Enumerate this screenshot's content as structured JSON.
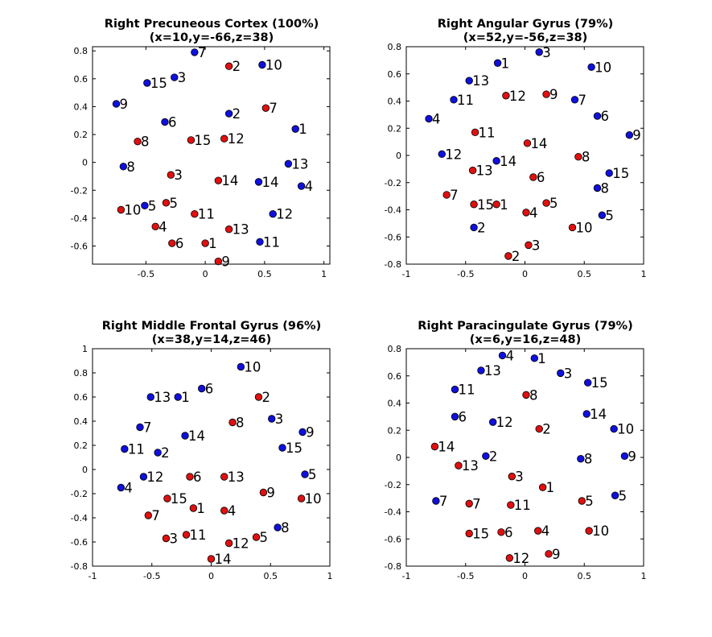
{
  "colors": {
    "red": "#e01010",
    "blue": "#1010dd",
    "edge": "#000000"
  },
  "chart_data": [
    {
      "type": "scatter",
      "title": "Right Precuneous Cortex (100%)",
      "subtitle": "(x=10,y=-66,z=38)",
      "xlim": [
        -0.95,
        1.05
      ],
      "ylim": [
        -0.73,
        0.83
      ],
      "xticks": [
        -0.5,
        0,
        0.5,
        1
      ],
      "xtick_labels": [
        "-0.5",
        "0",
        "0.5",
        "1"
      ],
      "yticks": [
        -0.6,
        -0.4,
        -0.2,
        0,
        0.2,
        0.4,
        0.6,
        0.8
      ],
      "ytick_labels": [
        "-0.6",
        "-0.4",
        "-0.2",
        "0",
        "0.2",
        "0.4",
        "0.6",
        "0.8"
      ],
      "series": [
        {
          "color": "blue",
          "points": [
            {
              "x": -0.09,
              "y": 0.79,
              "label": "7"
            },
            {
              "x": 0.48,
              "y": 0.7,
              "label": "10"
            },
            {
              "x": -0.26,
              "y": 0.61,
              "label": "3"
            },
            {
              "x": -0.49,
              "y": 0.57,
              "label": "15"
            },
            {
              "x": -0.75,
              "y": 0.42,
              "label": "9"
            },
            {
              "x": 0.2,
              "y": 0.35,
              "label": "2"
            },
            {
              "x": -0.34,
              "y": 0.29,
              "label": "6"
            },
            {
              "x": 0.76,
              "y": 0.24,
              "label": "1"
            },
            {
              "x": -0.69,
              "y": -0.03,
              "label": "8"
            },
            {
              "x": 0.7,
              "y": -0.01,
              "label": "13"
            },
            {
              "x": 0.45,
              "y": -0.14,
              "label": "14"
            },
            {
              "x": 0.81,
              "y": -0.17,
              "label": "4"
            },
            {
              "x": -0.51,
              "y": -0.31,
              "label": "5"
            },
            {
              "x": 0.57,
              "y": -0.37,
              "label": "12"
            },
            {
              "x": 0.46,
              "y": -0.57,
              "label": "11"
            }
          ]
        },
        {
          "color": "red",
          "points": [
            {
              "x": 0.2,
              "y": 0.69,
              "label": "2"
            },
            {
              "x": 0.51,
              "y": 0.39,
              "label": "7"
            },
            {
              "x": -0.57,
              "y": 0.15,
              "label": "8"
            },
            {
              "x": -0.12,
              "y": 0.16,
              "label": "15"
            },
            {
              "x": 0.16,
              "y": 0.17,
              "label": "12"
            },
            {
              "x": -0.29,
              "y": -0.09,
              "label": "3"
            },
            {
              "x": 0.11,
              "y": -0.13,
              "label": "14"
            },
            {
              "x": -0.33,
              "y": -0.29,
              "label": "5"
            },
            {
              "x": -0.71,
              "y": -0.34,
              "label": "10"
            },
            {
              "x": -0.09,
              "y": -0.37,
              "label": "11"
            },
            {
              "x": -0.42,
              "y": -0.46,
              "label": "4"
            },
            {
              "x": 0.2,
              "y": -0.48,
              "label": "13"
            },
            {
              "x": -0.28,
              "y": -0.58,
              "label": "6"
            },
            {
              "x": 0.0,
              "y": -0.58,
              "label": "1"
            },
            {
              "x": 0.11,
              "y": -0.71,
              "label": "9"
            }
          ]
        }
      ]
    },
    {
      "type": "scatter",
      "title": "Right Angular Gyrus (79%)",
      "subtitle": "(x=52,y=-56,z=38)",
      "xlim": [
        -1,
        1
      ],
      "ylim": [
        -0.8,
        0.8
      ],
      "xticks": [
        -1,
        -0.5,
        0,
        0.5,
        1
      ],
      "xtick_labels": [
        "-1",
        "-0.5",
        "0",
        "0.5",
        "1"
      ],
      "yticks": [
        -0.8,
        -0.6,
        -0.4,
        -0.2,
        0,
        0.2,
        0.4,
        0.6,
        0.8
      ],
      "ytick_labels": [
        "-0.8",
        "-0.6",
        "-0.4",
        "-0.2",
        "0",
        "0.2",
        "0.4",
        "0.6",
        "0.8"
      ],
      "series": [
        {
          "color": "blue",
          "points": [
            {
              "x": 0.12,
              "y": 0.76,
              "label": "3"
            },
            {
              "x": -0.23,
              "y": 0.68,
              "label": "1"
            },
            {
              "x": 0.56,
              "y": 0.65,
              "label": "10"
            },
            {
              "x": -0.47,
              "y": 0.55,
              "label": "13"
            },
            {
              "x": -0.6,
              "y": 0.41,
              "label": "11"
            },
            {
              "x": 0.42,
              "y": 0.41,
              "label": "7"
            },
            {
              "x": 0.61,
              "y": 0.29,
              "label": "6"
            },
            {
              "x": -0.81,
              "y": 0.27,
              "label": "4"
            },
            {
              "x": 0.88,
              "y": 0.15,
              "label": "9"
            },
            {
              "x": -0.7,
              "y": 0.01,
              "label": "12"
            },
            {
              "x": -0.24,
              "y": -0.04,
              "label": "14"
            },
            {
              "x": 0.71,
              "y": -0.13,
              "label": "15"
            },
            {
              "x": 0.61,
              "y": -0.24,
              "label": "8"
            },
            {
              "x": 0.65,
              "y": -0.44,
              "label": "5"
            },
            {
              "x": -0.43,
              "y": -0.53,
              "label": "2"
            }
          ]
        },
        {
          "color": "red",
          "points": [
            {
              "x": -0.16,
              "y": 0.44,
              "label": "12"
            },
            {
              "x": 0.18,
              "y": 0.45,
              "label": "9"
            },
            {
              "x": -0.42,
              "y": 0.17,
              "label": "11"
            },
            {
              "x": 0.02,
              "y": 0.09,
              "label": "14"
            },
            {
              "x": 0.45,
              "y": -0.01,
              "label": "8"
            },
            {
              "x": -0.44,
              "y": -0.11,
              "label": "13"
            },
            {
              "x": 0.07,
              "y": -0.16,
              "label": "6"
            },
            {
              "x": -0.66,
              "y": -0.29,
              "label": "7"
            },
            {
              "x": -0.43,
              "y": -0.36,
              "label": "15"
            },
            {
              "x": -0.24,
              "y": -0.36,
              "label": "1"
            },
            {
              "x": 0.18,
              "y": -0.35,
              "label": "5"
            },
            {
              "x": 0.01,
              "y": -0.42,
              "label": "4"
            },
            {
              "x": 0.4,
              "y": -0.53,
              "label": "10"
            },
            {
              "x": 0.03,
              "y": -0.66,
              "label": "3"
            },
            {
              "x": -0.14,
              "y": -0.74,
              "label": "2"
            }
          ]
        }
      ]
    },
    {
      "type": "scatter",
      "title": "Right Middle Frontal Gyrus (96%)",
      "subtitle": "(x=38,y=14,z=46)",
      "xlim": [
        -1,
        1
      ],
      "ylim": [
        -0.8,
        1
      ],
      "xticks": [
        -1,
        -0.5,
        0,
        0.5,
        1
      ],
      "xtick_labels": [
        "-1",
        "-0.5",
        "0",
        "0.5",
        "1"
      ],
      "yticks": [
        -0.8,
        -0.6,
        -0.4,
        -0.2,
        0,
        0.2,
        0.4,
        0.6,
        0.8,
        1
      ],
      "ytick_labels": [
        "-0.8",
        "-0.6",
        "-0.4",
        "-0.2",
        "0",
        "0.2",
        "0.4",
        "0.6",
        "0.8",
        "1"
      ],
      "series": [
        {
          "color": "blue",
          "points": [
            {
              "x": 0.25,
              "y": 0.85,
              "label": "10"
            },
            {
              "x": -0.08,
              "y": 0.67,
              "label": "6"
            },
            {
              "x": -0.51,
              "y": 0.6,
              "label": "13"
            },
            {
              "x": -0.28,
              "y": 0.6,
              "label": "1"
            },
            {
              "x": 0.51,
              "y": 0.42,
              "label": "3"
            },
            {
              "x": -0.6,
              "y": 0.35,
              "label": "7"
            },
            {
              "x": -0.22,
              "y": 0.28,
              "label": "14"
            },
            {
              "x": 0.77,
              "y": 0.31,
              "label": "9"
            },
            {
              "x": -0.73,
              "y": 0.17,
              "label": "11"
            },
            {
              "x": -0.45,
              "y": 0.14,
              "label": "2"
            },
            {
              "x": 0.6,
              "y": 0.18,
              "label": "15"
            },
            {
              "x": 0.79,
              "y": -0.04,
              "label": "5"
            },
            {
              "x": -0.57,
              "y": -0.06,
              "label": "12"
            },
            {
              "x": -0.76,
              "y": -0.15,
              "label": "4"
            },
            {
              "x": 0.56,
              "y": -0.48,
              "label": "8"
            }
          ]
        },
        {
          "color": "red",
          "points": [
            {
              "x": 0.4,
              "y": 0.6,
              "label": "2"
            },
            {
              "x": 0.18,
              "y": 0.39,
              "label": "8"
            },
            {
              "x": -0.18,
              "y": -0.06,
              "label": "6"
            },
            {
              "x": 0.11,
              "y": -0.06,
              "label": "13"
            },
            {
              "x": 0.44,
              "y": -0.19,
              "label": "9"
            },
            {
              "x": -0.37,
              "y": -0.24,
              "label": "15"
            },
            {
              "x": 0.76,
              "y": -0.24,
              "label": "10"
            },
            {
              "x": -0.15,
              "y": -0.32,
              "label": "1"
            },
            {
              "x": 0.11,
              "y": -0.34,
              "label": "4"
            },
            {
              "x": -0.53,
              "y": -0.38,
              "label": "7"
            },
            {
              "x": -0.21,
              "y": -0.54,
              "label": "11"
            },
            {
              "x": -0.38,
              "y": -0.57,
              "label": "3"
            },
            {
              "x": 0.38,
              "y": -0.56,
              "label": "5"
            },
            {
              "x": 0.15,
              "y": -0.61,
              "label": "12"
            },
            {
              "x": 0.0,
              "y": -0.74,
              "label": "14"
            }
          ]
        }
      ]
    },
    {
      "type": "scatter",
      "title": "Right Paracingulate Gyrus (79%)",
      "subtitle": "(x=6,y=16,z=48)",
      "xlim": [
        -1,
        1
      ],
      "ylim": [
        -0.8,
        0.8
      ],
      "xticks": [
        -1,
        -0.5,
        0,
        0.5,
        1
      ],
      "xtick_labels": [
        "-1",
        "-0.5",
        "0",
        "0.5",
        "1"
      ],
      "yticks": [
        -0.8,
        -0.6,
        -0.4,
        -0.2,
        0,
        0.2,
        0.4,
        0.6,
        0.8
      ],
      "ytick_labels": [
        "-0.8",
        "-0.6",
        "-0.4",
        "-0.2",
        "0",
        "0.2",
        "0.4",
        "0.6",
        "0.8"
      ],
      "series": [
        {
          "color": "blue",
          "points": [
            {
              "x": -0.19,
              "y": 0.75,
              "label": "4"
            },
            {
              "x": 0.08,
              "y": 0.73,
              "label": "1"
            },
            {
              "x": -0.37,
              "y": 0.64,
              "label": "13"
            },
            {
              "x": 0.3,
              "y": 0.62,
              "label": "3"
            },
            {
              "x": 0.53,
              "y": 0.55,
              "label": "15"
            },
            {
              "x": -0.59,
              "y": 0.5,
              "label": "11"
            },
            {
              "x": 0.52,
              "y": 0.32,
              "label": "14"
            },
            {
              "x": -0.59,
              "y": 0.3,
              "label": "6"
            },
            {
              "x": -0.27,
              "y": 0.26,
              "label": "12"
            },
            {
              "x": 0.75,
              "y": 0.21,
              "label": "10"
            },
            {
              "x": -0.33,
              "y": 0.01,
              "label": "2"
            },
            {
              "x": 0.47,
              "y": -0.01,
              "label": "8"
            },
            {
              "x": 0.84,
              "y": 0.01,
              "label": "9"
            },
            {
              "x": 0.76,
              "y": -0.28,
              "label": "5"
            },
            {
              "x": -0.75,
              "y": -0.32,
              "label": "7"
            }
          ]
        },
        {
          "color": "red",
          "points": [
            {
              "x": 0.01,
              "y": 0.46,
              "label": "8"
            },
            {
              "x": 0.12,
              "y": 0.21,
              "label": "2"
            },
            {
              "x": -0.76,
              "y": 0.08,
              "label": "14"
            },
            {
              "x": -0.56,
              "y": -0.06,
              "label": "13"
            },
            {
              "x": -0.11,
              "y": -0.14,
              "label": "3"
            },
            {
              "x": 0.15,
              "y": -0.22,
              "label": "1"
            },
            {
              "x": -0.47,
              "y": -0.34,
              "label": "7"
            },
            {
              "x": -0.12,
              "y": -0.35,
              "label": "11"
            },
            {
              "x": 0.48,
              "y": -0.32,
              "label": "5"
            },
            {
              "x": -0.47,
              "y": -0.56,
              "label": "15"
            },
            {
              "x": -0.2,
              "y": -0.55,
              "label": "6"
            },
            {
              "x": 0.11,
              "y": -0.54,
              "label": "4"
            },
            {
              "x": 0.54,
              "y": -0.54,
              "label": "10"
            },
            {
              "x": 0.2,
              "y": -0.71,
              "label": "9"
            },
            {
              "x": -0.13,
              "y": -0.74,
              "label": "12"
            }
          ]
        }
      ]
    }
  ]
}
